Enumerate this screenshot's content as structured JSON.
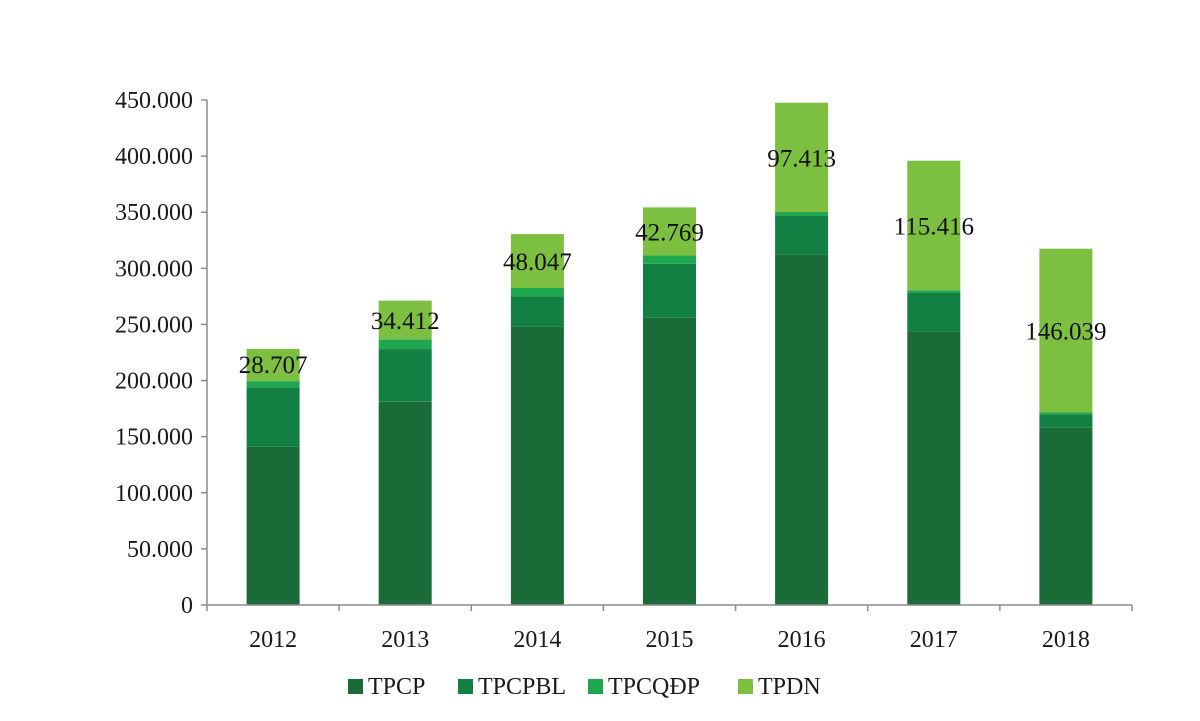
{
  "chart_data": {
    "type": "bar",
    "stacked": true,
    "categories": [
      "2012",
      "2013",
      "2014",
      "2015",
      "2016",
      "2017",
      "2018"
    ],
    "series": [
      {
        "name": "TPCP",
        "color": "#1a6b38",
        "values": [
          141000,
          181000,
          248000,
          256000,
          312000,
          244000,
          158000
        ]
      },
      {
        "name": "TPCPBL",
        "color": "#128042",
        "values": [
          53000,
          47000,
          27000,
          48000,
          35000,
          34000,
          12000
        ]
      },
      {
        "name": "TPCQĐP",
        "color": "#1fa64f",
        "values": [
          5500,
          8800,
          7500,
          7500,
          3200,
          2500,
          1500
        ]
      },
      {
        "name": "TPDN",
        "color": "#7dbf41",
        "values": [
          28707,
          34412,
          48047,
          42769,
          97413,
          115416,
          146039
        ]
      }
    ],
    "data_labels": [
      "28.707",
      "34.412",
      "48.047",
      "42.769",
      "97.413",
      "115.416",
      "146.039"
    ],
    "ylim": [
      0,
      450000
    ],
    "yticks": [
      0,
      50000,
      100000,
      150000,
      200000,
      250000,
      300000,
      350000,
      400000,
      450000
    ],
    "ytick_labels": [
      "0",
      "50.000",
      "100.000",
      "150.000",
      "200.000",
      "250.000",
      "300.000",
      "350.000",
      "400.000",
      "450.000"
    ],
    "title": "",
    "xlabel": "",
    "ylabel": "",
    "legend_position": "bottom",
    "grid": false
  }
}
